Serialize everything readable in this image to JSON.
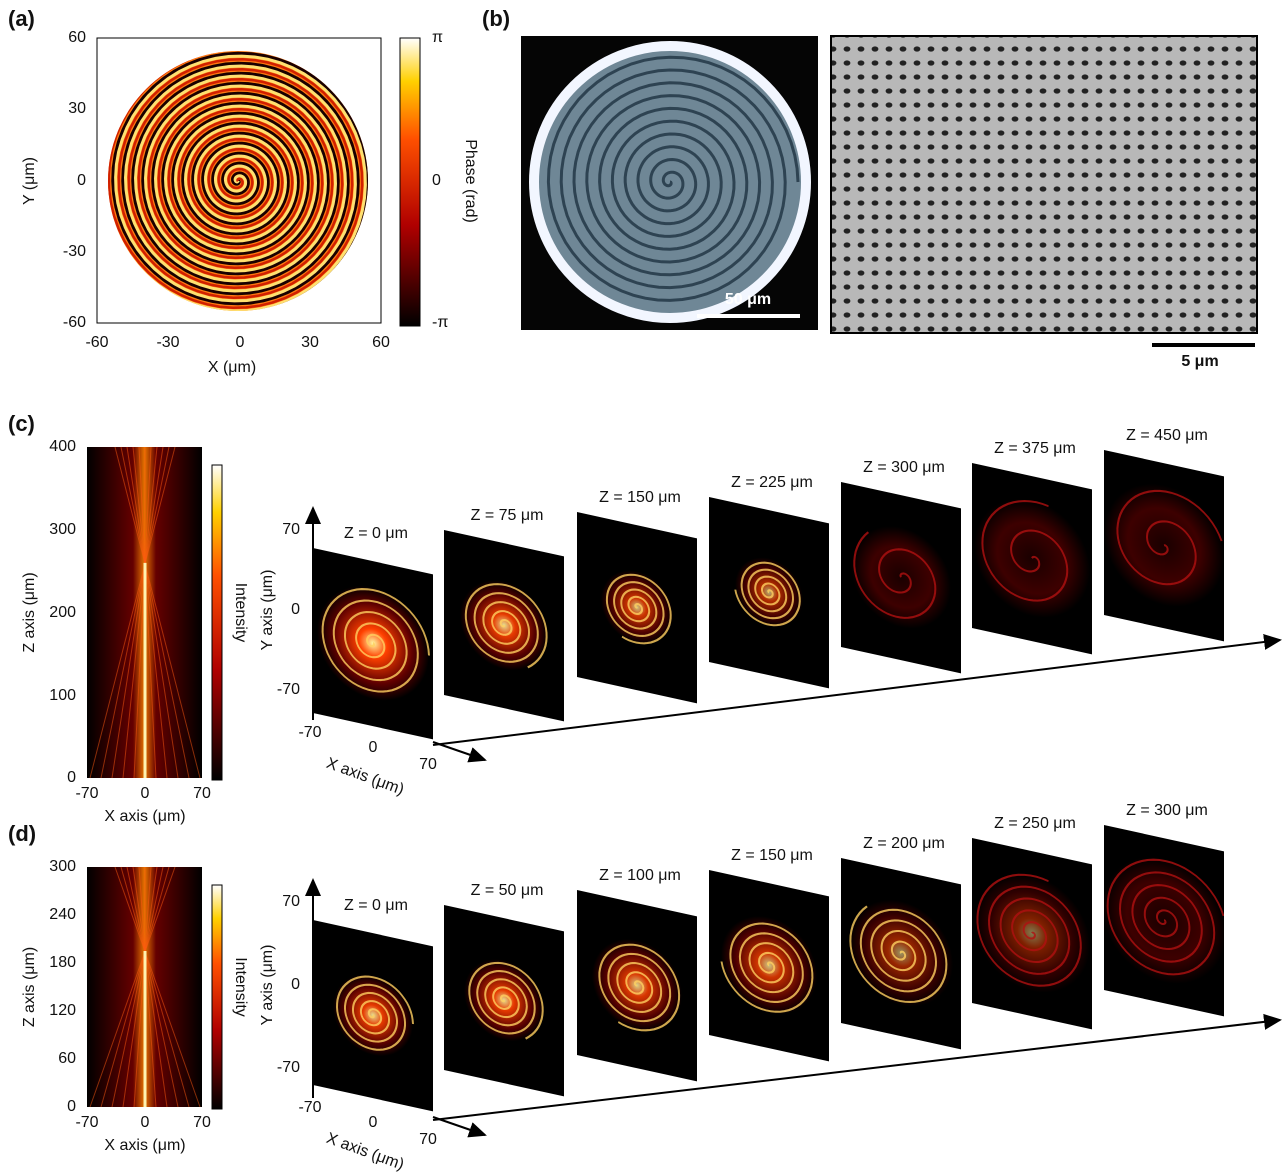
{
  "panel_a": {
    "label": "(a)",
    "x_axis_label": "X (μm)",
    "y_axis_label": "Y (μm)",
    "x_ticks": [
      "-60",
      "-30",
      "0",
      "30",
      "60"
    ],
    "y_ticks": [
      "60",
      "30",
      "0",
      "-30",
      "-60"
    ],
    "colorbar_label": "Phase (rad)",
    "colorbar_ticks": [
      "π",
      "0",
      "-π"
    ]
  },
  "panel_b": {
    "label": "(b)",
    "optical_scale_bar": "50 μm",
    "sem_scale_bar": "5 μm"
  },
  "panel_c": {
    "label": "(c)",
    "side_view": {
      "z_axis_label": "Z axis (μm)",
      "x_axis_label": "X axis (μm)",
      "z_ticks": [
        "400",
        "300",
        "200",
        "100",
        "0"
      ],
      "x_ticks": [
        "-70",
        "0",
        "70"
      ],
      "colorbar_label": "Intensity"
    },
    "slices": {
      "y_axis_label": "Y axis (μm)",
      "x_axis_label": "X axis (μm)",
      "y_ticks": [
        "70",
        "0",
        "-70"
      ],
      "x_ticks": [
        "-70",
        "0",
        "70"
      ],
      "planes": [
        "Z = 0 μm",
        "Z = 75 μm",
        "Z = 150 μm",
        "Z = 225 μm",
        "Z = 300 μm",
        "Z = 375 μm",
        "Z = 450 μm"
      ]
    }
  },
  "panel_d": {
    "label": "(d)",
    "side_view": {
      "z_axis_label": "Z axis (μm)",
      "x_axis_label": "X axis (μm)",
      "z_ticks": [
        "300",
        "240",
        "180",
        "120",
        "60",
        "0"
      ],
      "x_ticks": [
        "-70",
        "0",
        "70"
      ],
      "colorbar_label": "Intensity"
    },
    "slices": {
      "y_axis_label": "Y axis (μm)",
      "x_axis_label": "X axis (μm)",
      "y_ticks": [
        "70",
        "0",
        "-70"
      ],
      "x_ticks": [
        "-70",
        "0",
        "70"
      ],
      "planes": [
        "Z = 0 μm",
        "Z = 50 μm",
        "Z = 100 μm",
        "Z = 150 μm",
        "Z = 200 μm",
        "Z = 250 μm",
        "Z = 300 μm"
      ]
    }
  }
}
